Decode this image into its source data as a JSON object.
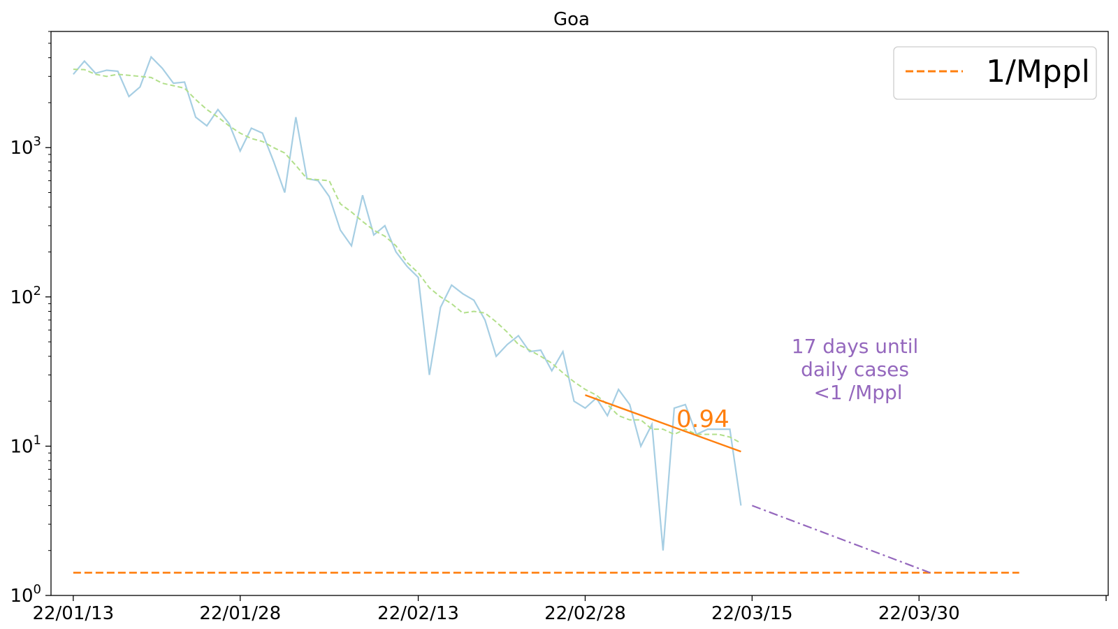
{
  "chart_data": {
    "type": "line",
    "title": "Goa",
    "y_scale": "log",
    "ylim": [
      1,
      6000
    ],
    "xlim": [
      "2022-01-11",
      "2022-04-16"
    ],
    "x_ticks": [
      {
        "date": "2022-01-13",
        "label": "22/01/13"
      },
      {
        "date": "2022-01-28",
        "label": "22/01/28"
      },
      {
        "date": "2022-02-13",
        "label": "22/02/13"
      },
      {
        "date": "2022-02-28",
        "label": "22/02/28"
      },
      {
        "date": "2022-03-15",
        "label": "22/03/15"
      },
      {
        "date": "2022-03-30",
        "label": "22/03/30"
      }
    ],
    "y_ticks": [
      {
        "value": 1,
        "base": "10",
        "exp": "0"
      },
      {
        "value": 10,
        "base": "10",
        "exp": "1"
      },
      {
        "value": 100,
        "base": "10",
        "exp": "2"
      },
      {
        "value": 1000,
        "base": "10",
        "exp": "3"
      }
    ],
    "series": [
      {
        "role": "daily",
        "color": "#a6cee3",
        "style": "solid",
        "x": [
          "2022-01-13",
          "2022-01-14",
          "2022-01-15",
          "2022-01-16",
          "2022-01-17",
          "2022-01-18",
          "2022-01-19",
          "2022-01-20",
          "2022-01-21",
          "2022-01-22",
          "2022-01-23",
          "2022-01-24",
          "2022-01-25",
          "2022-01-26",
          "2022-01-27",
          "2022-01-28",
          "2022-01-29",
          "2022-01-30",
          "2022-01-31",
          "2022-02-01",
          "2022-02-02",
          "2022-02-03",
          "2022-02-04",
          "2022-02-05",
          "2022-02-06",
          "2022-02-07",
          "2022-02-08",
          "2022-02-09",
          "2022-02-10",
          "2022-02-11",
          "2022-02-12",
          "2022-02-13",
          "2022-02-14",
          "2022-02-15",
          "2022-02-16",
          "2022-02-17",
          "2022-02-18",
          "2022-02-19",
          "2022-02-20",
          "2022-02-21",
          "2022-02-22",
          "2022-02-23",
          "2022-02-24",
          "2022-02-25",
          "2022-02-26",
          "2022-02-27",
          "2022-02-28",
          "2022-03-01",
          "2022-03-02",
          "2022-03-03",
          "2022-03-04",
          "2022-03-05",
          "2022-03-06",
          "2022-03-07",
          "2022-03-08",
          "2022-03-09",
          "2022-03-10",
          "2022-03-11",
          "2022-03-12",
          "2022-03-13",
          "2022-03-14"
        ],
        "y": [
          3100,
          3800,
          3150,
          3300,
          3250,
          2200,
          2550,
          4050,
          3400,
          2700,
          2750,
          1600,
          1400,
          1800,
          1450,
          950,
          1350,
          1250,
          810,
          500,
          1600,
          620,
          600,
          470,
          280,
          220,
          480,
          260,
          300,
          200,
          160,
          135,
          30,
          85,
          120,
          105,
          95,
          70,
          40,
          48,
          55,
          43,
          44,
          32,
          43,
          20,
          18,
          21,
          16,
          24,
          19,
          10,
          14,
          2,
          18,
          19,
          12,
          13,
          13,
          13,
          4
        ]
      },
      {
        "role": "7-day average",
        "color": "#b2df8a",
        "style": "dashed",
        "x": [
          "2022-01-13",
          "2022-01-14",
          "2022-01-15",
          "2022-01-16",
          "2022-01-17",
          "2022-01-18",
          "2022-01-19",
          "2022-01-20",
          "2022-01-21",
          "2022-01-22",
          "2022-01-23",
          "2022-01-24",
          "2022-01-25",
          "2022-01-26",
          "2022-01-27",
          "2022-01-28",
          "2022-01-29",
          "2022-01-30",
          "2022-01-31",
          "2022-02-01",
          "2022-02-02",
          "2022-02-03",
          "2022-02-04",
          "2022-02-05",
          "2022-02-06",
          "2022-02-07",
          "2022-02-08",
          "2022-02-09",
          "2022-02-10",
          "2022-02-11",
          "2022-02-12",
          "2022-02-13",
          "2022-02-14",
          "2022-02-15",
          "2022-02-16",
          "2022-02-17",
          "2022-02-18",
          "2022-02-19",
          "2022-02-20",
          "2022-02-21",
          "2022-02-22",
          "2022-02-23",
          "2022-02-24",
          "2022-02-25",
          "2022-02-26",
          "2022-02-27",
          "2022-02-28",
          "2022-03-01",
          "2022-03-02",
          "2022-03-03",
          "2022-03-04",
          "2022-03-05",
          "2022-03-06",
          "2022-03-07",
          "2022-03-08",
          "2022-03-09",
          "2022-03-10",
          "2022-03-11",
          "2022-03-12",
          "2022-03-13",
          "2022-03-14"
        ],
        "y": [
          3350,
          3330,
          3100,
          3000,
          3100,
          3050,
          3000,
          2950,
          2700,
          2600,
          2500,
          2100,
          1800,
          1600,
          1400,
          1250,
          1150,
          1100,
          1000,
          920,
          760,
          620,
          610,
          600,
          420,
          370,
          320,
          280,
          255,
          220,
          170,
          145,
          115,
          100,
          90,
          78,
          80,
          78,
          68,
          58,
          48,
          44,
          40,
          36,
          31,
          27,
          24,
          22,
          19,
          16,
          15,
          15,
          13,
          13,
          12,
          13,
          12,
          12,
          12,
          11.5,
          10.5
        ]
      }
    ],
    "trend": {
      "label": "0.94",
      "color": "#ff7f0e",
      "x": [
        "2022-02-28",
        "2022-03-14"
      ],
      "y": [
        22,
        9.2
      ]
    },
    "projection": {
      "color": "#9467bd",
      "style": "dashdot",
      "x": [
        "2022-03-15",
        "2022-03-31"
      ],
      "y": [
        4.0,
        1.42
      ]
    },
    "threshold": {
      "name": "1/Mppl",
      "value": 1.42,
      "color": "#ff7f0e",
      "style": "dashed",
      "x": [
        "2022-01-13",
        "2022-04-08"
      ]
    },
    "legend": {
      "position": "top-right",
      "entries": [
        "1/Mppl"
      ]
    },
    "annotation": {
      "lines": [
        "17 days until",
        "daily cases",
        "<1 /Mppl"
      ],
      "color": "#9467bd"
    },
    "grid": false
  }
}
